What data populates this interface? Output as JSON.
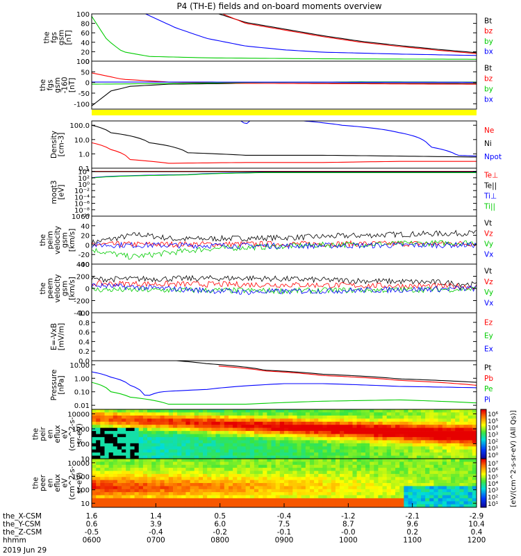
{
  "title": "P4 (TH-E) fields and on-board moments overview",
  "date_label": "2019 Jun 29",
  "chart_data": [
    {
      "type": "line",
      "ylabel": [
        "the",
        "fgs",
        "gsm",
        "[nT]"
      ],
      "ylim": [
        0,
        100
      ],
      "yticks": [
        {
          "v": 0,
          "t": "0"
        },
        {
          "v": 20,
          "t": "20"
        },
        {
          "v": 40,
          "t": "40"
        },
        {
          "v": 60,
          "t": "60"
        },
        {
          "v": 80,
          "t": "80"
        },
        {
          "v": 100,
          "t": "100"
        }
      ],
      "series": [
        {
          "name": "Bt",
          "color": "#000000",
          "points": [
            [
              0.33,
              100
            ],
            [
              0.4,
              82
            ],
            [
              0.5,
              68
            ],
            [
              0.6,
              54
            ],
            [
              0.7,
              42
            ],
            [
              0.8,
              33
            ],
            [
              0.9,
              25
            ],
            [
              1.0,
              18
            ]
          ]
        },
        {
          "name": "bz",
          "color": "#ff0000",
          "points": [
            [
              0.34,
              100
            ],
            [
              0.4,
              80
            ],
            [
              0.5,
              66
            ],
            [
              0.6,
              52
            ],
            [
              0.7,
              40
            ],
            [
              0.8,
              31
            ],
            [
              0.9,
              23
            ],
            [
              1.0,
              16
            ]
          ]
        },
        {
          "name": "by",
          "color": "#00cc00",
          "points": [
            [
              0,
              95
            ],
            [
              0.04,
              45
            ],
            [
              0.08,
              20
            ],
            [
              0.15,
              10
            ],
            [
              0.3,
              7
            ],
            [
              0.6,
              5
            ],
            [
              1.0,
              4
            ]
          ]
        },
        {
          "name": "bx",
          "color": "#0000ff",
          "points": [
            [
              0.14,
              100
            ],
            [
              0.22,
              70
            ],
            [
              0.3,
              48
            ],
            [
              0.4,
              32
            ],
            [
              0.5,
              24
            ],
            [
              0.6,
              19
            ],
            [
              0.8,
              15
            ],
            [
              1.0,
              12
            ]
          ]
        }
      ]
    },
    {
      "type": "line",
      "ylabel": [
        "the",
        "fgs",
        "gsm",
        "-160",
        "[nT]"
      ],
      "ylim": [
        -125,
        100
      ],
      "yticks": [
        {
          "v": -100,
          "t": "-100"
        },
        {
          "v": -50,
          "t": "-50"
        },
        {
          "v": 0,
          "t": "0"
        },
        {
          "v": 50,
          "t": "50"
        },
        {
          "v": 100,
          "t": "100"
        }
      ],
      "series": [
        {
          "name": "Bt",
          "color": "#000000",
          "points": [
            [
              0,
              -110
            ],
            [
              0.05,
              -40
            ],
            [
              0.1,
              -18
            ],
            [
              0.2,
              -8
            ],
            [
              0.4,
              -4
            ],
            [
              0.7,
              -4
            ],
            [
              1.0,
              -5
            ]
          ]
        },
        {
          "name": "bz",
          "color": "#ff0000",
          "points": [
            [
              0,
              45
            ],
            [
              0.08,
              15
            ],
            [
              0.2,
              2
            ],
            [
              0.4,
              -4
            ],
            [
              0.7,
              -6
            ],
            [
              1.0,
              -8
            ]
          ]
        },
        {
          "name": "by",
          "color": "#00cc00",
          "points": [
            [
              0,
              -8
            ],
            [
              0.2,
              -5
            ],
            [
              0.4,
              0
            ],
            [
              0.7,
              3
            ],
            [
              1.0,
              2
            ]
          ]
        },
        {
          "name": "bx",
          "color": "#0000ff",
          "points": [
            [
              0,
              2
            ],
            [
              1.0,
              1
            ]
          ]
        }
      ]
    },
    {
      "type": "line",
      "log": true,
      "ylabel": [
        "Density",
        "[cm-3]"
      ],
      "ylim": [
        0.1,
        200
      ],
      "yticks": [
        {
          "v": 0.1,
          "t": "0.1"
        },
        {
          "v": 1,
          "t": "1.0"
        },
        {
          "v": 10,
          "t": "10.0"
        },
        {
          "v": 100,
          "t": "100.0"
        }
      ],
      "series": [
        {
          "name": "Ne",
          "color": "#ff0000",
          "points": [
            [
              0,
              6
            ],
            [
              0.05,
              2
            ],
            [
              0.1,
              0.4
            ],
            [
              0.2,
              0.22
            ],
            [
              0.4,
              0.25
            ],
            [
              0.6,
              0.25
            ],
            [
              0.8,
              0.3
            ],
            [
              1.0,
              0.3
            ]
          ]
        },
        {
          "name": "Ni",
          "color": "#000000",
          "points": [
            [
              0,
              100
            ],
            [
              0.05,
              30
            ],
            [
              0.15,
              6
            ],
            [
              0.25,
              1.2
            ],
            [
              0.4,
              0.8
            ],
            [
              0.6,
              0.8
            ],
            [
              0.8,
              0.7
            ],
            [
              1.0,
              0.6
            ]
          ]
        },
        {
          "name": "Npot",
          "color": "#0000ff",
          "points": [
            [
              0.38,
              300
            ],
            [
              0.4,
              100
            ],
            [
              0.42,
              300
            ],
            [
              0.5,
              250
            ],
            [
              0.65,
              100
            ],
            [
              0.8,
              30
            ],
            [
              0.88,
              3
            ],
            [
              0.95,
              0.8
            ],
            [
              1.0,
              0.7
            ]
          ]
        }
      ]
    },
    {
      "type": "line",
      "log": true,
      "ylabel": [
        "moqt3",
        "[eV]"
      ],
      "ylim": [
        1e-10,
        100000.0
      ],
      "yticks": [
        {
          "v": 10000.0,
          "t": "10⁴"
        },
        {
          "v": 100.0,
          "t": "10²"
        },
        {
          "v": 1,
          "t": "10⁰"
        },
        {
          "v": 0.01,
          "t": "10⁻²"
        },
        {
          "v": 0.0001,
          "t": "10⁻⁴"
        },
        {
          "v": 1e-06,
          "t": "10⁻⁶"
        },
        {
          "v": 1e-08,
          "t": "10⁻⁸"
        },
        {
          "v": 1e-10,
          "t": "10⁻¹⁰"
        }
      ],
      "series": [
        {
          "name": "Te⊥",
          "color": "#ff0000",
          "points": [
            [
              0,
              10000
            ],
            [
              1.0,
              10000
            ]
          ]
        },
        {
          "name": "Te||",
          "color": "#000000",
          "points": [
            [
              0,
              8000
            ],
            [
              1.0,
              8000
            ]
          ]
        },
        {
          "name": "Ti⊥",
          "color": "#0000ff",
          "points": [
            [
              0,
              100
            ],
            [
              0.25,
              1000
            ],
            [
              0.45,
              5000
            ],
            [
              1.0,
              5000
            ]
          ]
        },
        {
          "name": "Ti||",
          "color": "#00cc00",
          "points": [
            [
              0,
              80
            ],
            [
              0.25,
              800
            ],
            [
              0.45,
              4000
            ],
            [
              1.0,
              4000
            ]
          ]
        }
      ]
    },
    {
      "type": "line",
      "noisy": true,
      "ylabel": [
        "the",
        "peim",
        "velocity",
        "gsm",
        "[km/s]"
      ],
      "ylim": [
        -40,
        60
      ],
      "yticks": [
        {
          "v": -40,
          "t": "-40"
        },
        {
          "v": -20,
          "t": "-20"
        },
        {
          "v": 0,
          "t": "0"
        },
        {
          "v": 20,
          "t": "20"
        },
        {
          "v": 40,
          "t": "40"
        },
        {
          "v": 60,
          "t": "60"
        }
      ],
      "series": [
        {
          "name": "Vt",
          "color": "#000000",
          "points": [
            [
              0,
              5
            ],
            [
              0.12,
              22
            ],
            [
              0.22,
              12
            ],
            [
              0.5,
              15
            ],
            [
              0.8,
              22
            ],
            [
              1.0,
              25
            ]
          ]
        },
        {
          "name": "Vz",
          "color": "#ff0000",
          "points": [
            [
              0,
              1
            ],
            [
              0.5,
              2
            ],
            [
              1.0,
              3
            ]
          ]
        },
        {
          "name": "Vy",
          "color": "#00cc00",
          "points": [
            [
              0,
              -10
            ],
            [
              0.1,
              -25
            ],
            [
              0.3,
              -8
            ],
            [
              0.6,
              0
            ],
            [
              1.0,
              5
            ]
          ]
        },
        {
          "name": "Vx",
          "color": "#0000ff",
          "points": [
            [
              0,
              0
            ],
            [
              0.5,
              -2
            ],
            [
              1.0,
              0
            ]
          ]
        }
      ]
    },
    {
      "type": "line",
      "noisy": true,
      "ylabel": [
        "the",
        "peem",
        "velocity",
        "gsm",
        "[km/s]"
      ],
      "ylim": [
        -400,
        400
      ],
      "yticks": [
        {
          "v": -400,
          "t": "-400"
        },
        {
          "v": -200,
          "t": "-200"
        },
        {
          "v": 0,
          "t": "0"
        },
        {
          "v": 200,
          "t": "200"
        },
        {
          "v": 400,
          "t": "400"
        }
      ],
      "series": [
        {
          "name": "Vt",
          "color": "#000000",
          "points": [
            [
              0,
              150
            ],
            [
              0.4,
              170
            ],
            [
              0.6,
              140
            ],
            [
              0.9,
              100
            ],
            [
              1.0,
              60
            ]
          ]
        },
        {
          "name": "Vz",
          "color": "#ff0000",
          "points": [
            [
              0,
              80
            ],
            [
              0.5,
              60
            ],
            [
              1.0,
              30
            ]
          ]
        },
        {
          "name": "Vy",
          "color": "#00cc00",
          "points": [
            [
              0,
              -20
            ],
            [
              0.5,
              -40
            ],
            [
              1.0,
              -10
            ]
          ]
        },
        {
          "name": "Vx",
          "color": "#0000ff",
          "points": [
            [
              0,
              50
            ],
            [
              0.4,
              -60
            ],
            [
              1.0,
              0
            ]
          ]
        }
      ]
    },
    {
      "type": "line",
      "ylabel": [
        "E=-VxB",
        "[mV/m]"
      ],
      "ylim": [
        0,
        1
      ],
      "yticks": [
        {
          "v": 0,
          "t": "0.0"
        },
        {
          "v": 0.2,
          "t": "0.2"
        },
        {
          "v": 0.4,
          "t": "0.4"
        },
        {
          "v": 0.6,
          "t": "0.6"
        },
        {
          "v": 0.8,
          "t": "0.8"
        },
        {
          "v": 1,
          "t": "1.0"
        }
      ],
      "series": [
        {
          "name": "Ez",
          "color": "#ff0000",
          "points": []
        },
        {
          "name": "Ey",
          "color": "#00cc00",
          "points": []
        },
        {
          "name": "Ex",
          "color": "#0000ff",
          "points": []
        }
      ]
    },
    {
      "type": "line",
      "log": true,
      "ylabel": [
        "Pressure",
        "[nPa]"
      ],
      "ylim": [
        0.005,
        20
      ],
      "yticks": [
        {
          "v": 0.01,
          "t": "0.01"
        },
        {
          "v": 0.1,
          "t": "0.10"
        },
        {
          "v": 1,
          "t": "1.00"
        },
        {
          "v": 10,
          "t": "10.00"
        }
      ],
      "series": [
        {
          "name": "Pt",
          "color": "#000000",
          "points": [
            [
              0.22,
              20
            ],
            [
              0.3,
              12
            ],
            [
              0.45,
              4
            ],
            [
              0.6,
              2
            ],
            [
              0.8,
              0.9
            ],
            [
              1.0,
              0.5
            ]
          ]
        },
        {
          "name": "Pb",
          "color": "#ff0000",
          "points": [
            [
              0.33,
              8
            ],
            [
              0.45,
              3.5
            ],
            [
              0.6,
              1.6
            ],
            [
              0.8,
              0.7
            ],
            [
              1.0,
              0.3
            ]
          ]
        },
        {
          "name": "Pe",
          "color": "#00cc00",
          "points": [
            [
              0,
              0.5
            ],
            [
              0.05,
              0.1
            ],
            [
              0.1,
              0.04
            ],
            [
              0.2,
              0.012
            ],
            [
              0.4,
              0.012
            ],
            [
              0.6,
              0.02
            ],
            [
              0.8,
              0.025
            ],
            [
              0.9,
              0.02
            ],
            [
              1.0,
              0.015
            ]
          ]
        },
        {
          "name": "Pi",
          "color": "#0000ff",
          "points": [
            [
              0,
              3
            ],
            [
              0.05,
              1.2
            ],
            [
              0.1,
              0.3
            ],
            [
              0.14,
              0.04
            ],
            [
              0.18,
              0.1
            ],
            [
              0.3,
              0.15
            ],
            [
              0.5,
              0.4
            ],
            [
              0.6,
              0.4
            ],
            [
              0.8,
              0.25
            ],
            [
              1.0,
              0.2
            ]
          ]
        }
      ]
    },
    {
      "type": "heatmap",
      "log": true,
      "ylabel": [
        "the",
        "peir",
        "en",
        "eflux",
        "eV",
        "(cm^2-s-",
        "sr-eV)"
      ],
      "ylim": [
        10,
        20000
      ],
      "yticks": [
        {
          "v": 10,
          "t": "10"
        },
        {
          "v": 100,
          "t": "100"
        },
        {
          "v": 1000,
          "t": "1000"
        },
        {
          "v": 10000,
          "t": "10000"
        }
      ],
      "colorbar_ticks": [
        "10⁶",
        "10⁵",
        "10⁴",
        "10³",
        "10²",
        "10¹",
        "10⁰"
      ],
      "colorbar_label": "[eV/(cm^2-s-sr-eV) (All Qs)]"
    },
    {
      "type": "heatmap",
      "log": true,
      "ylabel": [
        "the",
        "peer",
        "en",
        "eflux",
        "eV",
        "(cm^2-s-",
        "sr-eV)"
      ],
      "ylim": [
        5,
        20000
      ],
      "yticks": [
        {
          "v": 10,
          "t": "10"
        },
        {
          "v": 100,
          "t": "100"
        },
        {
          "v": 1000,
          "t": "1000"
        },
        {
          "v": 10000,
          "t": "10000"
        }
      ],
      "colorbar_ticks": [
        "10⁷",
        "10⁶",
        "10⁵",
        "10⁴",
        "10³",
        "10²",
        "10¹"
      ],
      "colorbar_label": "[eV/(cm^2-s-sr-eV) (All Qs)]"
    }
  ],
  "x_axis": {
    "rows": [
      {
        "label": "the_X-CSM",
        "values": [
          "1.6",
          "1.4",
          "0.5",
          "-0.4",
          "-1.2",
          "-2.1",
          "-2.9"
        ]
      },
      {
        "label": "the_Y-CSM",
        "values": [
          "0.6",
          "3.9",
          "6.0",
          "7.5",
          "8.7",
          "9.6",
          "10.4"
        ]
      },
      {
        "label": "the_Z-CSM",
        "values": [
          "-0.5",
          "-0.4",
          "-0.2",
          "-0.1",
          "-0.0",
          "0.2",
          "0.4"
        ]
      },
      {
        "label": "hhmm",
        "values": [
          "0600",
          "0700",
          "0800",
          "0900",
          "1000",
          "1100",
          "1200"
        ]
      }
    ]
  }
}
